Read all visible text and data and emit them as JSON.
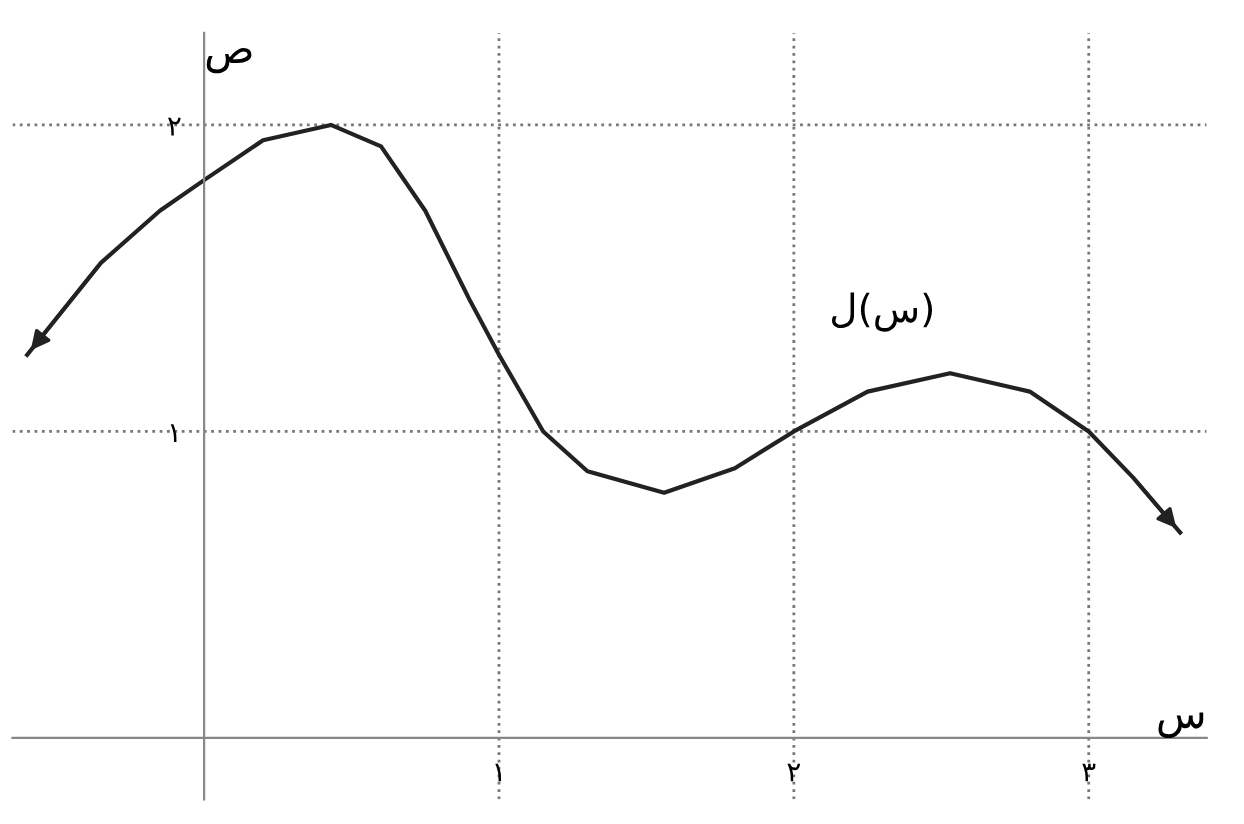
{
  "chart_data": {
    "type": "line",
    "xlabel": "س",
    "ylabel": "ص",
    "x": [
      -0.6,
      -0.35,
      -0.15,
      0,
      0.2,
      0.43,
      0.6,
      0.75,
      0.9,
      1,
      1.15,
      1.3,
      1.56,
      1.8,
      2,
      2.25,
      2.53,
      2.8,
      3,
      3.15,
      3.31
    ],
    "series": [
      {
        "color": "#222222",
        "values": [
          1.25,
          1.55,
          1.72,
          1.82,
          1.95,
          2.0,
          1.93,
          1.72,
          1.43,
          1.25,
          1.0,
          0.87,
          0.8,
          0.88,
          1.0,
          1.13,
          1.19,
          1.13,
          1.0,
          0.85,
          0.67
        ]
      }
    ],
    "xlim": [
      -0.65,
      3.4
    ],
    "ylim": [
      -0.2,
      2.3
    ],
    "xticks": [
      {
        "value": 1,
        "label": "١"
      },
      {
        "value": 2,
        "label": "٢"
      },
      {
        "value": 3,
        "label": "٣"
      }
    ],
    "yticks": [
      {
        "value": 1,
        "label": "١"
      },
      {
        "value": 2,
        "label": "٢"
      }
    ],
    "grid": true,
    "marker": "none",
    "line_style": "solid",
    "annotations": [
      {
        "text": "ل(س)",
        "x": 2.3,
        "y": 1.13
      }
    ]
  }
}
